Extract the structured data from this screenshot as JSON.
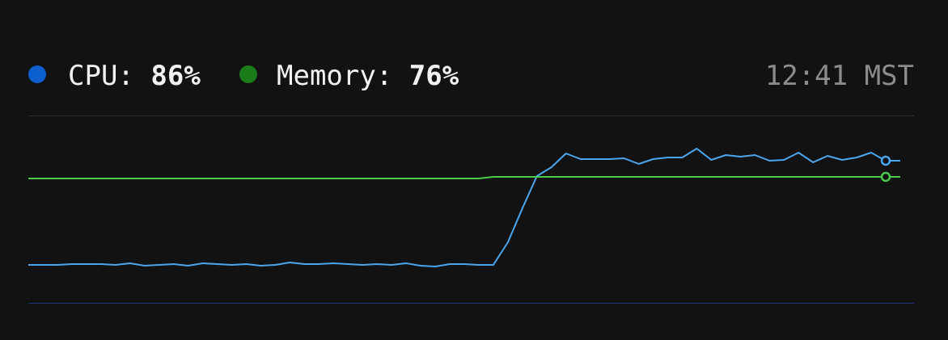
{
  "header": {
    "cpu_label": "CPU:",
    "cpu_value": "86%",
    "memory_label": "Memory:",
    "memory_value": "76%",
    "time": "12:41 MST"
  },
  "chart_data": {
    "type": "line",
    "ylim": [
      -2,
      114
    ],
    "series": [
      {
        "color": "#4ba6ee",
        "dot_color": "#0b5fcf",
        "values": [
          21.5,
          21.5,
          21.5,
          22,
          22,
          22,
          21.5,
          22.5,
          21,
          21.5,
          22,
          21,
          22.5,
          22,
          21.5,
          22,
          21,
          21.5,
          23,
          22,
          22,
          22.5,
          22,
          21.5,
          22,
          21.5,
          22.5,
          21,
          20.5,
          22,
          22,
          21.5,
          21.5,
          35.5,
          56.5,
          76.5,
          82,
          90.5,
          87,
          87,
          87,
          87.5,
          84,
          87,
          88,
          88,
          93.5,
          86.5,
          89.5,
          88.5,
          89.5,
          86,
          86.5,
          91,
          85,
          89,
          86.5,
          88,
          91,
          86
        ]
      },
      {
        "color": "#4cc94c",
        "dot_color": "#1a7d1a",
        "values": [
          75,
          75,
          75,
          75,
          75,
          75,
          75,
          75,
          75,
          75,
          75,
          75,
          75,
          75,
          75,
          75,
          75,
          75,
          75,
          75,
          75,
          75,
          75,
          75,
          75,
          75,
          75,
          75,
          75,
          75,
          75,
          75,
          76,
          76,
          76,
          76,
          76,
          76,
          76,
          76,
          76,
          76,
          76,
          76,
          76,
          76,
          76,
          76,
          76,
          76,
          76,
          76,
          76,
          76,
          76,
          76,
          76,
          76,
          76,
          76
        ]
      }
    ]
  }
}
